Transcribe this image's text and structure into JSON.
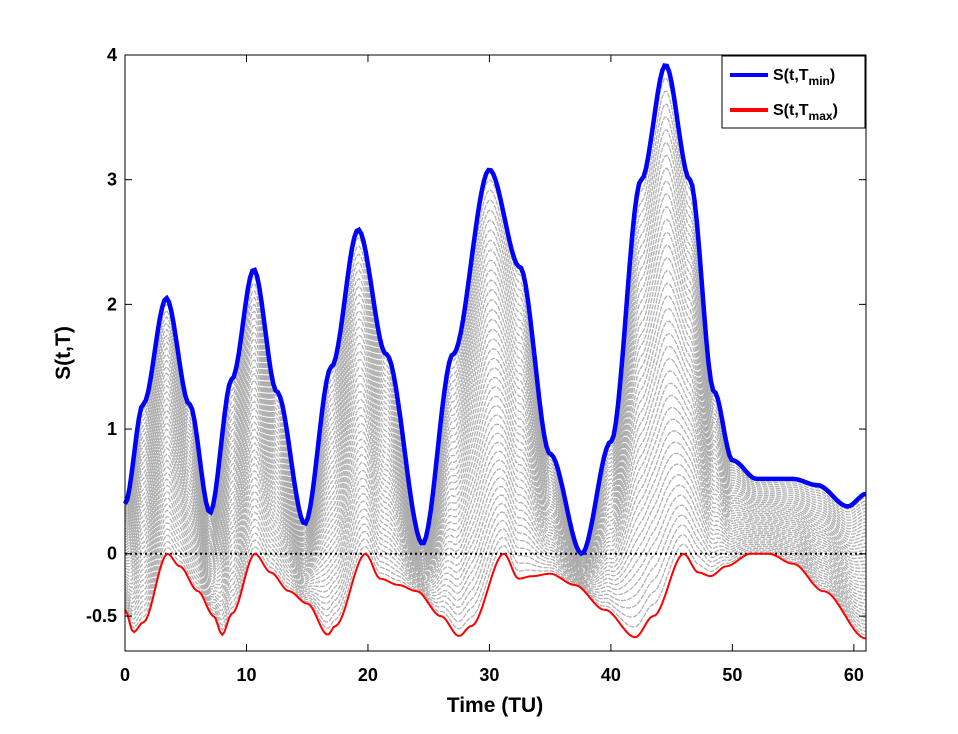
{
  "chart_data": {
    "type": "line",
    "title": "",
    "xlabel": "Time (TU)",
    "ylabel": "S(t,T)",
    "xlim": [
      0,
      61
    ],
    "ylim": [
      -0.78,
      4
    ],
    "xticks": [
      0,
      10,
      20,
      30,
      40,
      50,
      60
    ],
    "yticks": [
      -0.5,
      0,
      1,
      2,
      3,
      4
    ],
    "xtick_labels": [
      "0",
      "10",
      "20",
      "30",
      "40",
      "50",
      "60"
    ],
    "ytick_labels": [
      "-0.5",
      "0",
      "1",
      "2",
      "3",
      "4"
    ],
    "grid": false,
    "legend_position": "top-right",
    "n_intermediate_curves": 40,
    "colors": {
      "upper": "#0000ff",
      "lower": "#ff0000",
      "family": "#aaaaaa",
      "zero_line": "#000000"
    },
    "legend": [
      {
        "base": "S(t,T",
        "sub": "min",
        "close": ")",
        "color": "#0000ff"
      },
      {
        "base": "S(t,T",
        "sub": "max",
        "close": ")",
        "color": "#ff0000"
      }
    ],
    "series": [
      {
        "name": "S(t,Tmin)",
        "color": "#0000ff",
        "points": [
          [
            0,
            0.4
          ],
          [
            1.5,
            1.2
          ],
          [
            3.4,
            2.05
          ],
          [
            5.3,
            1.2
          ],
          [
            7,
            0.33
          ],
          [
            8.8,
            1.4
          ],
          [
            10.6,
            2.28
          ],
          [
            12.5,
            1.3
          ],
          [
            14.8,
            0.24
          ],
          [
            17,
            1.5
          ],
          [
            19.2,
            2.6
          ],
          [
            21.5,
            1.6
          ],
          [
            24.5,
            0.08
          ],
          [
            27,
            1.6
          ],
          [
            30,
            3.08
          ],
          [
            32.5,
            2.3
          ],
          [
            35,
            0.8
          ],
          [
            37.6,
            0.0
          ],
          [
            40,
            0.9
          ],
          [
            42.5,
            3.0
          ],
          [
            44.5,
            3.92
          ],
          [
            46.5,
            3.0
          ],
          [
            48.5,
            1.3
          ],
          [
            50,
            0.75
          ],
          [
            52,
            0.6
          ],
          [
            55,
            0.6
          ],
          [
            57,
            0.55
          ],
          [
            59.5,
            0.38
          ],
          [
            61,
            0.48
          ]
        ]
      },
      {
        "name": "S(t,Tmax)",
        "color": "#ff0000",
        "points": [
          [
            0,
            -0.45
          ],
          [
            0.7,
            -0.63
          ],
          [
            1.5,
            -0.55
          ],
          [
            3.5,
            0.0
          ],
          [
            4.5,
            -0.1
          ],
          [
            6,
            -0.3
          ],
          [
            7.3,
            -0.5
          ],
          [
            8,
            -0.65
          ],
          [
            8.8,
            -0.48
          ],
          [
            10.7,
            0.0
          ],
          [
            12,
            -0.15
          ],
          [
            13.5,
            -0.3
          ],
          [
            15,
            -0.4
          ],
          [
            16.7,
            -0.65
          ],
          [
            17.3,
            -0.58
          ],
          [
            19.8,
            0.0
          ],
          [
            21,
            -0.2
          ],
          [
            22.5,
            -0.25
          ],
          [
            24,
            -0.3
          ],
          [
            26,
            -0.5
          ],
          [
            27.5,
            -0.66
          ],
          [
            28.5,
            -0.58
          ],
          [
            31.2,
            0.0
          ],
          [
            32.4,
            -0.2
          ],
          [
            33.5,
            -0.18
          ],
          [
            35,
            -0.16
          ],
          [
            37,
            -0.25
          ],
          [
            39.5,
            -0.45
          ],
          [
            42,
            -0.67
          ],
          [
            43.5,
            -0.5
          ],
          [
            46,
            0.0
          ],
          [
            47.2,
            -0.15
          ],
          [
            48.2,
            -0.18
          ],
          [
            49.5,
            -0.1
          ],
          [
            51.5,
            0.0
          ],
          [
            53,
            0.0
          ],
          [
            55,
            -0.08
          ],
          [
            57.5,
            -0.3
          ],
          [
            61,
            -0.68
          ]
        ]
      }
    ]
  }
}
